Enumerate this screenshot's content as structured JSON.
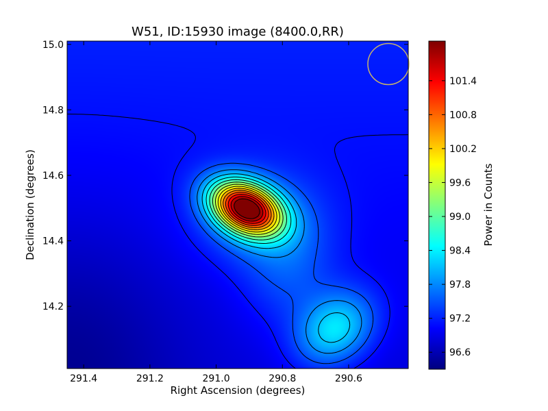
{
  "chart_data": {
    "type": "heatmap",
    "title": "W51, ID:15930 image (8400.0,RR)",
    "xlabel": "Right Ascension (degrees)",
    "ylabel": "Declination (degrees)",
    "xlim": [
      291.45,
      290.42
    ],
    "ylim": [
      14.01,
      15.01
    ],
    "xticks": [
      "291.4",
      "291.2",
      "291.0",
      "290.8",
      "290.6"
    ],
    "xtick_values": [
      291.4,
      291.2,
      291.0,
      290.8,
      290.6
    ],
    "yticks": [
      "14.2",
      "14.4",
      "14.6",
      "14.8",
      "15.0"
    ],
    "ytick_values": [
      14.2,
      14.4,
      14.6,
      14.8,
      15.0
    ],
    "colormap": "jet",
    "grid": false,
    "colorbar": {
      "label": "Power in Counts",
      "range": [
        96.3,
        102.1
      ],
      "ticks": [
        "96.6",
        "97.2",
        "97.8",
        "98.4",
        "99.0",
        "99.6",
        "100.2",
        "100.8",
        "101.4"
      ],
      "tick_values": [
        96.6,
        97.2,
        97.8,
        98.4,
        99.0,
        99.6,
        100.2,
        100.8,
        101.4
      ]
    },
    "peaks": [
      {
        "ra": 290.91,
        "dec": 14.5,
        "value": 102.0
      },
      {
        "ra": 290.64,
        "dec": 14.13,
        "value": 98.6
      }
    ],
    "beam_circle": {
      "ra": 290.48,
      "dec": 14.94,
      "color": "#c8b46a"
    },
    "contours": "black"
  }
}
